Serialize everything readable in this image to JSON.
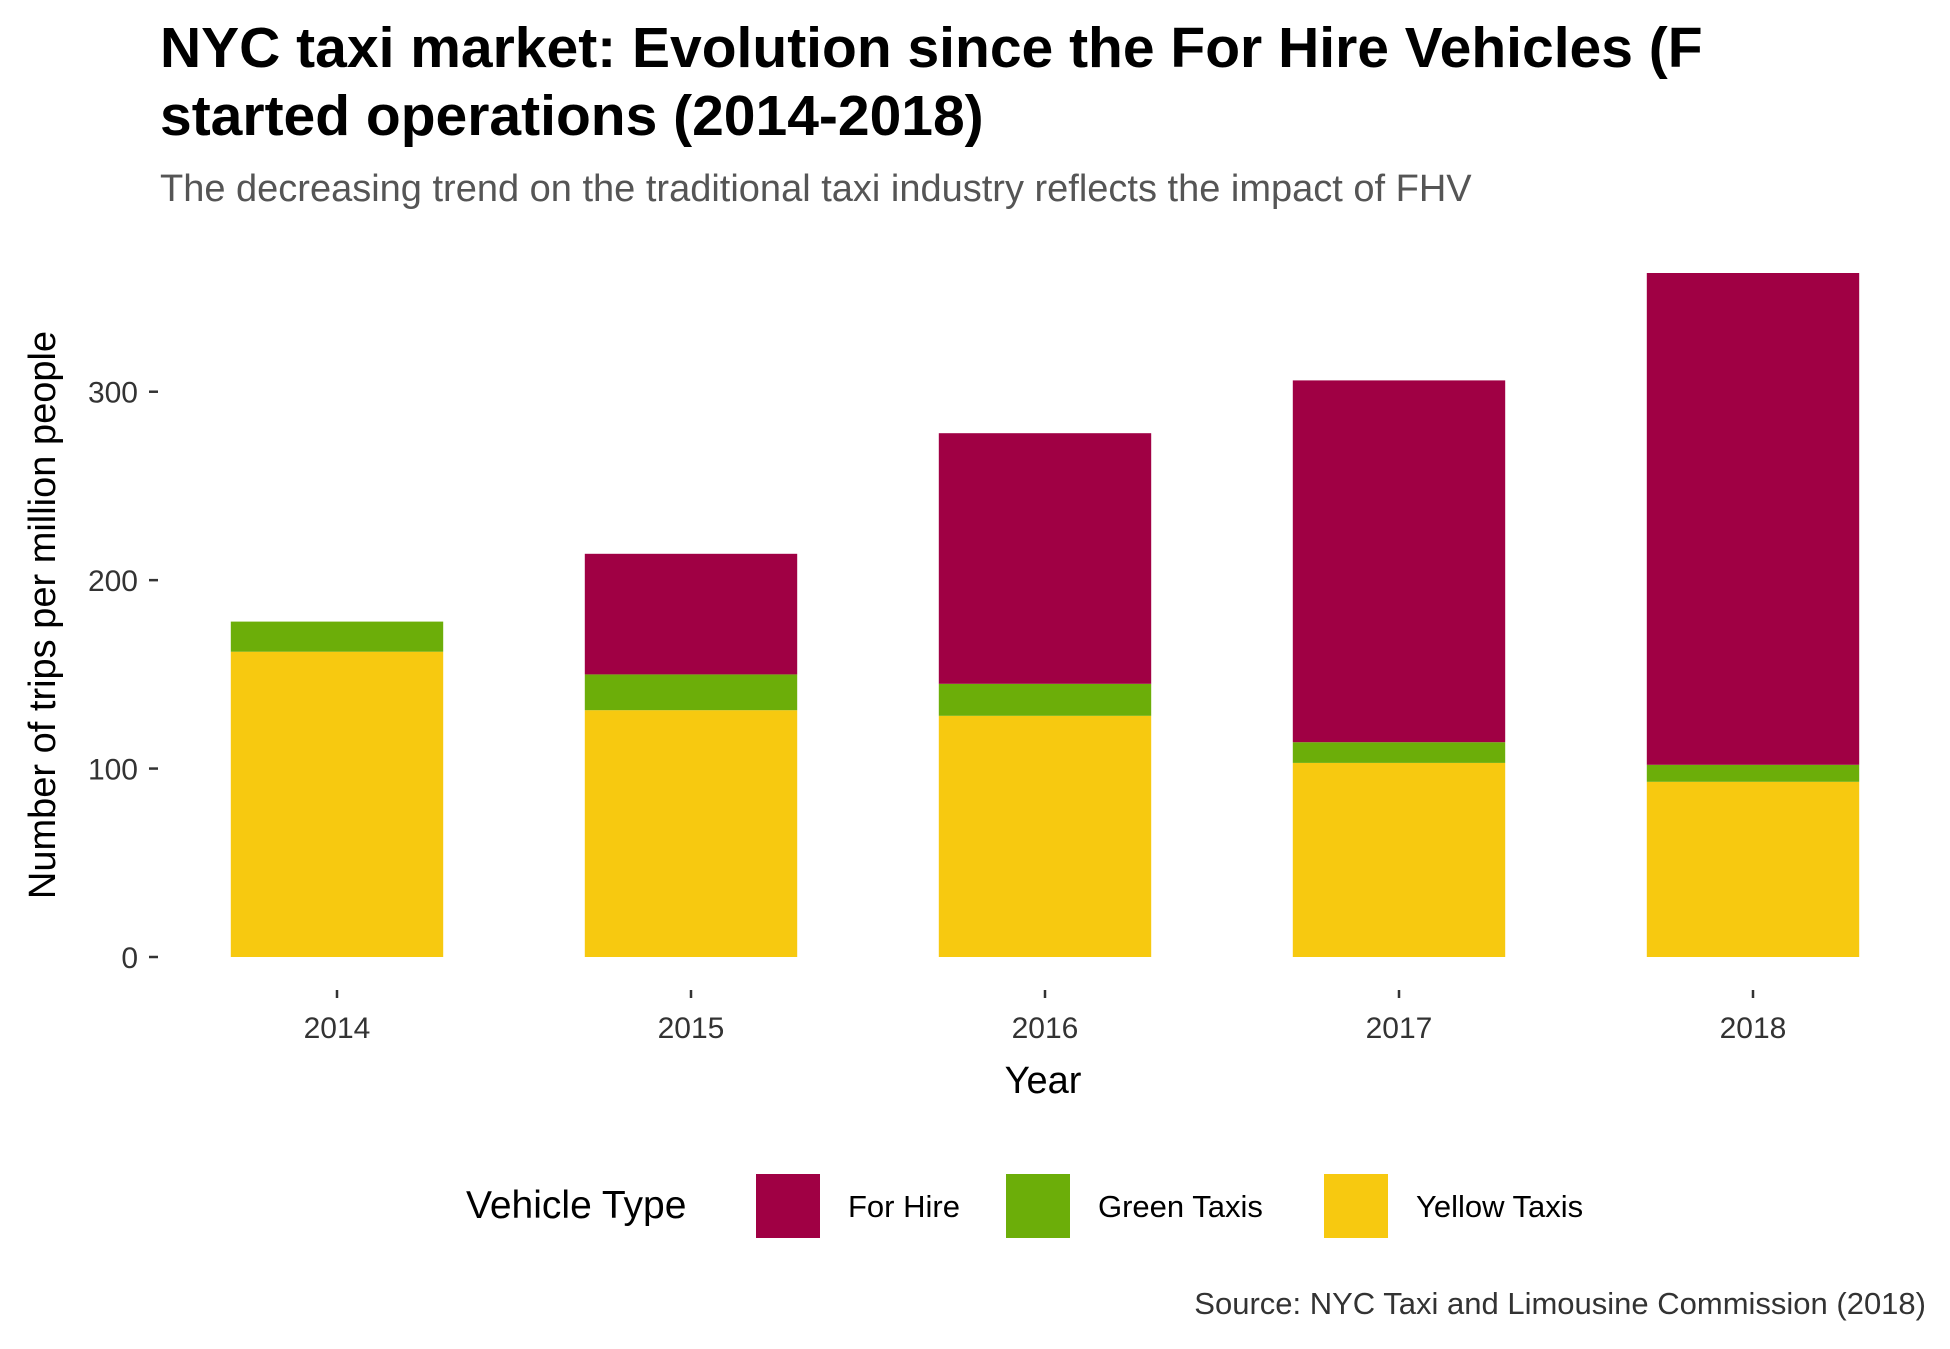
{
  "header": {
    "title_lines": [
      "NYC taxi market: Evolution since the For Hire Vehicles (F",
      "started operations (2014-2018)"
    ],
    "subtitle": "The decreasing trend on the traditional taxi industry reflects the impact of FHV"
  },
  "caption": "Source: NYC Taxi and Limousine Commission (2018)",
  "legend": {
    "title": "Vehicle Type",
    "position": "bottom"
  },
  "chart_data": {
    "type": "bar",
    "stacked": true,
    "xlabel": "Year",
    "ylabel": "Number of trips per million people",
    "ylim": [
      0,
      363
    ],
    "yticks": [
      0,
      100,
      200,
      300
    ],
    "grid": false,
    "categories": [
      "2014",
      "2015",
      "2016",
      "2017",
      "2018"
    ],
    "series": [
      {
        "name": "Yellow Taxis",
        "color": "#F7C910",
        "values": [
          162,
          131,
          128,
          103,
          93
        ]
      },
      {
        "name": "Green Taxis",
        "color": "#6CAE09",
        "values": [
          16,
          19,
          17,
          11,
          9
        ]
      },
      {
        "name": "For Hire",
        "color": "#A00044",
        "values": [
          0,
          64,
          133,
          192,
          261
        ]
      }
    ]
  }
}
